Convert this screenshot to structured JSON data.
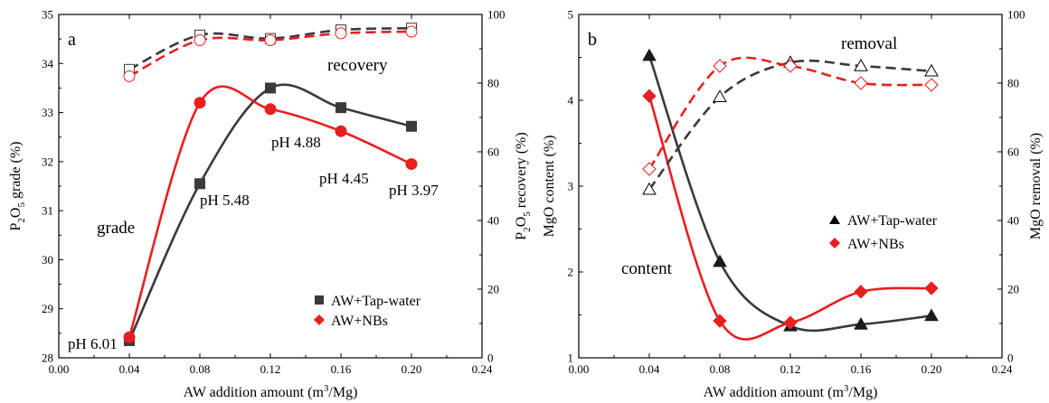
{
  "colors": {
    "gray": "#3a3a3a",
    "red": "#e62020",
    "axis": "#000000"
  },
  "chart_data": [
    {
      "type": "line",
      "panel_label": "a",
      "xlabel_parts": [
        "AW addition amount (m",
        "3",
        "/Mg)"
      ],
      "ylabel_left_parts": [
        "P",
        "2",
        "O",
        "5",
        " grade (%)"
      ],
      "ylabel_right_parts": [
        "P",
        "2",
        "O",
        "5",
        " recovery (%)"
      ],
      "xlim": [
        0.0,
        0.24
      ],
      "xticks": [
        "0.00",
        "0.04",
        "0.08",
        "0.12",
        "0.16",
        "0.20",
        "0.24"
      ],
      "ylim_left": [
        28,
        35
      ],
      "yticks_left": [
        "28",
        "29",
        "30",
        "31",
        "32",
        "33",
        "34",
        "35"
      ],
      "ylim_right": [
        0,
        100
      ],
      "yticks_right": [
        "0",
        "20",
        "40",
        "60",
        "80",
        "100"
      ],
      "x": [
        0.04,
        0.08,
        0.12,
        0.16,
        0.2
      ],
      "series": [
        {
          "name": "AW+Tap-water",
          "axis": "left",
          "marker": "square",
          "filled": true,
          "color": "#3a3a3a",
          "dashed": false,
          "values": [
            28.35,
            31.55,
            33.5,
            33.1,
            32.72
          ]
        },
        {
          "name": "AW+NBs",
          "axis": "left",
          "marker": "circle",
          "filled": true,
          "color": "#e62020",
          "dashed": false,
          "values": [
            28.42,
            33.2,
            33.07,
            32.62,
            31.95
          ]
        },
        {
          "axis": "right",
          "marker": "square",
          "filled": false,
          "color": "#3a3a3a",
          "dashed": true,
          "values": [
            84.0,
            94.0,
            93.0,
            95.5,
            96.0
          ]
        },
        {
          "axis": "right",
          "marker": "circle",
          "filled": false,
          "color": "#e62020",
          "dashed": true,
          "values": [
            82.0,
            92.5,
            92.5,
            94.5,
            95.0
          ]
        }
      ],
      "annotations": [
        "grade",
        "recovery",
        "pH 6.01",
        "pH 5.48",
        "pH 4.88",
        "pH 4.45",
        "pH 3.97"
      ],
      "legend": [
        "AW+Tap-water",
        "AW+NBs"
      ],
      "legend_position": "bottom-right",
      "grid": false
    },
    {
      "type": "line",
      "panel_label": "b",
      "xlabel_parts": [
        "AW addition amount (m",
        "3",
        "/Mg)"
      ],
      "ylabel_left": "MgO content (%)",
      "ylabel_right": "MgO removal (%)",
      "xlim": [
        0.0,
        0.24
      ],
      "xticks": [
        "0.00",
        "0.04",
        "0.08",
        "0.12",
        "0.16",
        "0.20",
        "0.24"
      ],
      "ylim_left": [
        1,
        5
      ],
      "yticks_left": [
        "1",
        "2",
        "3",
        "4",
        "5"
      ],
      "ylim_right": [
        0,
        100
      ],
      "yticks_right": [
        "0",
        "20",
        "40",
        "60",
        "80",
        "100"
      ],
      "x": [
        0.04,
        0.08,
        0.12,
        0.16,
        0.2
      ],
      "series": [
        {
          "name": "AW+Tap-water",
          "axis": "left",
          "marker": "triangle",
          "filled": true,
          "color": "#3a3a3a",
          "dashed": false,
          "values": [
            4.52,
            2.12,
            1.37,
            1.39,
            1.49
          ]
        },
        {
          "name": "AW+NBs",
          "axis": "left",
          "marker": "diamond",
          "filled": true,
          "color": "#e62020",
          "dashed": false,
          "values": [
            4.05,
            1.43,
            1.41,
            1.77,
            1.81
          ]
        },
        {
          "axis": "right",
          "marker": "triangle",
          "filled": false,
          "color": "#3a3a3a",
          "dashed": true,
          "values": [
            49.0,
            76.0,
            86.0,
            85.0,
            83.5
          ]
        },
        {
          "axis": "right",
          "marker": "diamond",
          "filled": false,
          "color": "#e62020",
          "dashed": true,
          "values": [
            55.0,
            85.0,
            85.0,
            80.0,
            79.5
          ]
        }
      ],
      "annotations": [
        "removal",
        "content"
      ],
      "legend": [
        "AW+Tap-water",
        "AW+NBs"
      ],
      "legend_position": "right-middle",
      "grid": false
    }
  ]
}
